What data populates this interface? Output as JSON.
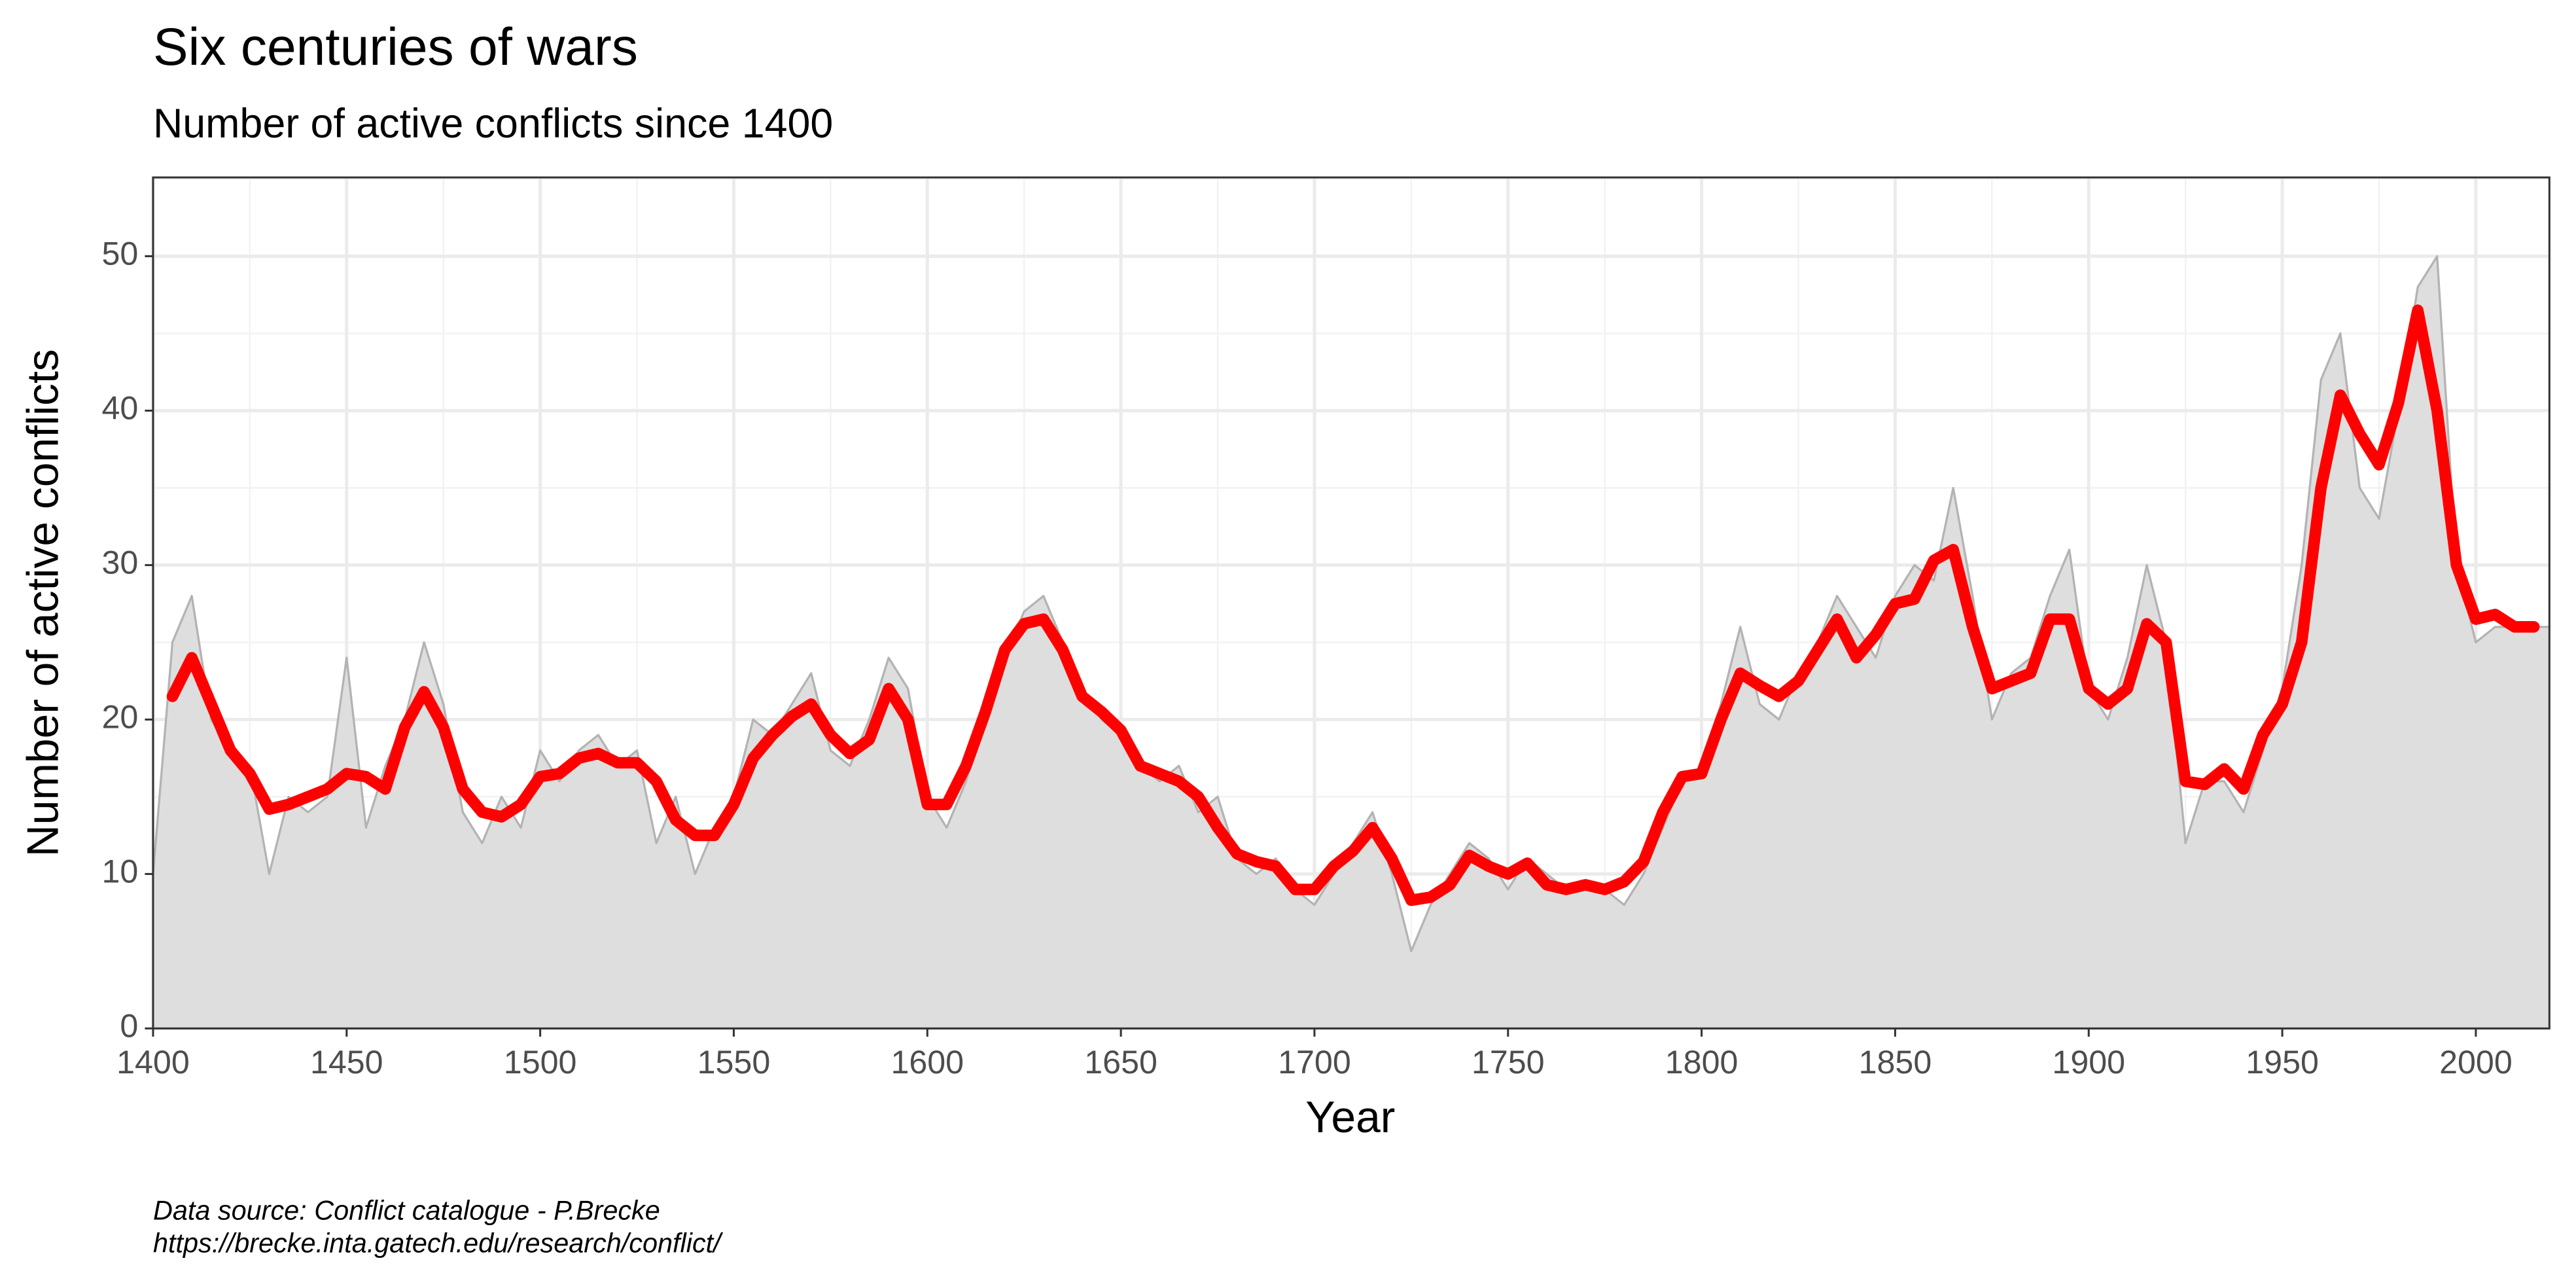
{
  "chart_data": {
    "type": "line",
    "title": "Six centuries of wars",
    "subtitle": "Number of active conflicts since 1400",
    "x_label": "Year",
    "y_label": "Number of active conflicts",
    "caption": [
      "Data source:  Conflict catalogue - P.Brecke",
      "https://brecke.inta.gatech.edu/research/conflict/"
    ],
    "x": [
      1400,
      1405,
      1410,
      1415,
      1420,
      1425,
      1430,
      1435,
      1440,
      1445,
      1450,
      1455,
      1460,
      1465,
      1470,
      1475,
      1480,
      1485,
      1490,
      1495,
      1500,
      1505,
      1510,
      1515,
      1520,
      1525,
      1530,
      1535,
      1540,
      1545,
      1550,
      1555,
      1560,
      1565,
      1570,
      1575,
      1580,
      1585,
      1590,
      1595,
      1600,
      1605,
      1610,
      1615,
      1620,
      1625,
      1630,
      1635,
      1640,
      1645,
      1650,
      1655,
      1660,
      1665,
      1670,
      1675,
      1680,
      1685,
      1690,
      1695,
      1700,
      1705,
      1710,
      1715,
      1720,
      1725,
      1730,
      1735,
      1740,
      1745,
      1750,
      1755,
      1760,
      1765,
      1770,
      1775,
      1780,
      1785,
      1790,
      1795,
      1800,
      1805,
      1810,
      1815,
      1820,
      1825,
      1830,
      1835,
      1840,
      1845,
      1850,
      1855,
      1860,
      1865,
      1870,
      1875,
      1880,
      1885,
      1890,
      1895,
      1900,
      1905,
      1910,
      1915,
      1920,
      1925,
      1930,
      1935,
      1940,
      1945,
      1950,
      1955,
      1960,
      1965,
      1970,
      1975,
      1980,
      1985,
      1990,
      1995,
      2000,
      2005,
      2010,
      2015,
      2019
    ],
    "series": [
      {
        "color": "#b3b3b3",
        "fill": "#dedede",
        "area": true,
        "values": [
          10,
          25,
          28,
          20,
          18,
          17,
          10,
          15,
          14,
          15,
          24,
          13,
          17,
          20,
          25,
          21,
          14,
          12,
          15,
          13,
          18,
          16,
          18,
          19,
          17,
          18,
          12,
          15,
          10,
          13,
          15,
          20,
          19,
          21,
          23,
          18,
          17,
          20,
          24,
          22,
          15,
          13,
          16,
          20,
          24,
          27,
          28,
          25,
          22,
          20,
          19,
          17,
          16,
          17,
          14,
          15,
          11,
          10,
          11,
          9,
          8,
          10,
          12,
          14,
          10,
          5,
          8,
          10,
          12,
          11,
          9,
          11,
          10,
          9,
          9,
          9,
          8,
          10,
          13,
          16,
          17,
          21,
          26,
          21,
          20,
          23,
          25,
          28,
          26,
          24,
          28,
          30,
          29,
          35,
          28,
          20,
          23,
          24,
          28,
          31,
          22,
          20,
          24,
          30,
          25,
          12,
          16,
          16,
          14,
          18,
          22,
          30,
          42,
          45,
          35,
          33,
          40,
          48,
          50,
          30,
          25,
          26,
          26,
          26,
          26
        ]
      },
      {
        "color": "#ff0000",
        "area": false,
        "values": [
          null,
          21.5,
          24,
          21,
          18,
          16.5,
          14.2,
          14.5,
          15,
          15.5,
          16.5,
          16.3,
          15.5,
          19.5,
          21.8,
          19.5,
          15.5,
          14,
          13.7,
          14.5,
          16.3,
          16.5,
          17.5,
          17.8,
          17.2,
          17.2,
          16,
          13.5,
          12.5,
          12.5,
          14.5,
          17.5,
          19,
          20.2,
          21,
          19,
          17.8,
          18.7,
          22,
          20,
          14.5,
          14.5,
          17,
          20.5,
          24.5,
          26.2,
          26.5,
          24.5,
          21.5,
          20.5,
          19.3,
          17,
          16.5,
          16,
          15,
          13,
          11.3,
          10.8,
          10.5,
          9,
          9,
          10.5,
          11.5,
          13,
          11,
          8.3,
          8.5,
          9.3,
          11.2,
          10.5,
          10,
          10.7,
          9.3,
          9,
          9.3,
          9,
          9.5,
          10.8,
          14,
          16.3,
          16.5,
          20,
          23,
          22.2,
          21.5,
          22.5,
          24.5,
          26.5,
          24,
          25.5,
          27.5,
          27.8,
          30.3,
          31,
          26,
          22,
          22.5,
          23,
          26.5,
          26.5,
          22,
          21,
          22,
          26.2,
          25,
          16,
          15.8,
          16.8,
          15.5,
          19,
          21,
          25,
          35,
          41,
          38.5,
          36.5,
          40.5,
          46.5,
          40,
          30,
          26.5,
          26.8,
          26,
          26,
          null
        ]
      }
    ],
    "xlim": [
      1400,
      2019
    ],
    "ylim": [
      0,
      55.1
    ],
    "xticks": [
      1400,
      1450,
      1500,
      1550,
      1600,
      1650,
      1700,
      1750,
      1800,
      1850,
      1900,
      1950,
      2000
    ],
    "xminor": [
      1425,
      1475,
      1525,
      1575,
      1625,
      1675,
      1725,
      1775,
      1825,
      1875,
      1925,
      1975
    ],
    "yticks": [
      0,
      10,
      20,
      30,
      40,
      50
    ],
    "yminor": [
      5,
      15,
      25,
      35,
      45,
      55
    ],
    "grid": true
  }
}
